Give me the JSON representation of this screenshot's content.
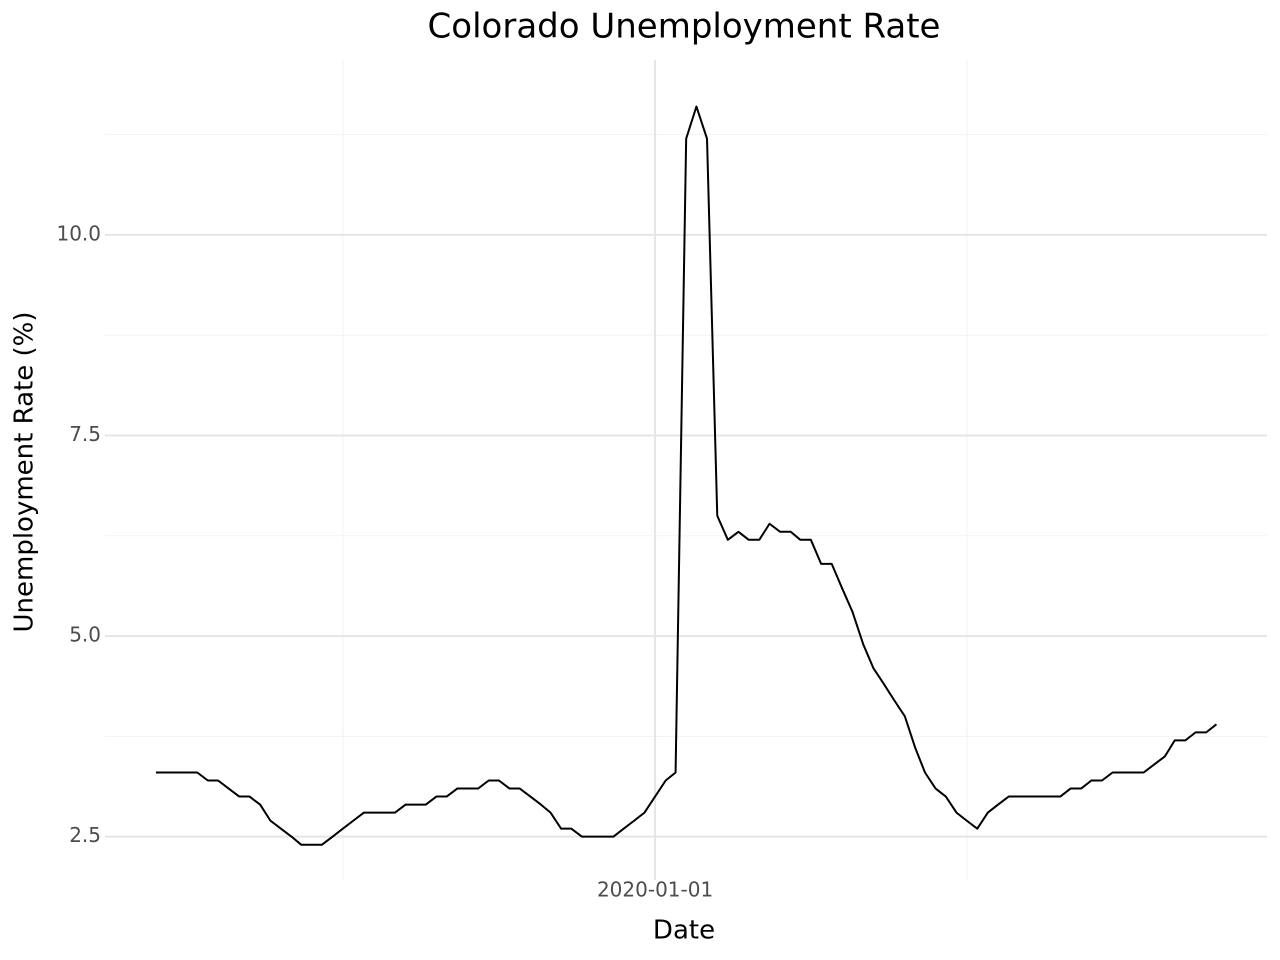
{
  "chart_data": {
    "type": "line",
    "title": "Colorado Unemployment Rate",
    "x_label": "Date",
    "y_label": "Unemployment Rate (%)",
    "color": "#000000",
    "grid": true,
    "x": [
      "2016-01-01",
      "2016-02-01",
      "2016-03-01",
      "2016-04-01",
      "2016-05-01",
      "2016-06-01",
      "2016-07-01",
      "2016-08-01",
      "2016-09-01",
      "2016-10-01",
      "2016-11-01",
      "2016-12-01",
      "2017-01-01",
      "2017-02-01",
      "2017-03-01",
      "2017-04-01",
      "2017-05-01",
      "2017-06-01",
      "2017-07-01",
      "2017-08-01",
      "2017-09-01",
      "2017-10-01",
      "2017-11-01",
      "2017-12-01",
      "2018-01-01",
      "2018-02-01",
      "2018-03-01",
      "2018-04-01",
      "2018-05-01",
      "2018-06-01",
      "2018-07-01",
      "2018-08-01",
      "2018-09-01",
      "2018-10-01",
      "2018-11-01",
      "2018-12-01",
      "2019-01-01",
      "2019-02-01",
      "2019-03-01",
      "2019-04-01",
      "2019-05-01",
      "2019-06-01",
      "2019-07-01",
      "2019-08-01",
      "2019-09-01",
      "2019-10-01",
      "2019-11-01",
      "2019-12-01",
      "2020-01-01",
      "2020-02-01",
      "2020-03-01",
      "2020-04-01",
      "2020-05-01",
      "2020-06-01",
      "2020-07-01",
      "2020-08-01",
      "2020-09-01",
      "2020-10-01",
      "2020-11-01",
      "2020-12-01",
      "2021-01-01",
      "2021-02-01",
      "2021-03-01",
      "2021-04-01",
      "2021-05-01",
      "2021-06-01",
      "2021-07-01",
      "2021-08-01",
      "2021-09-01",
      "2021-10-01",
      "2021-11-01",
      "2021-12-01",
      "2022-01-01",
      "2022-02-01",
      "2022-03-01",
      "2022-04-01",
      "2022-05-01",
      "2022-06-01",
      "2022-07-01",
      "2022-08-01",
      "2022-09-01",
      "2022-10-01",
      "2022-11-01",
      "2022-12-01",
      "2023-01-01",
      "2023-02-01",
      "2023-03-01",
      "2023-04-01",
      "2023-05-01",
      "2023-06-01",
      "2023-07-01",
      "2023-08-01",
      "2023-09-01",
      "2023-10-01",
      "2023-11-01",
      "2023-12-01",
      "2024-01-01",
      "2024-02-01",
      "2024-03-01",
      "2024-04-01",
      "2024-05-01",
      "2024-06-01",
      "2024-07-01"
    ],
    "values": [
      3.3,
      3.3,
      3.3,
      3.3,
      3.3,
      3.2,
      3.2,
      3.1,
      3.0,
      3.0,
      2.9,
      2.7,
      2.6,
      2.5,
      2.4,
      2.4,
      2.4,
      2.5,
      2.6,
      2.7,
      2.8,
      2.8,
      2.8,
      2.8,
      2.9,
      2.9,
      2.9,
      3.0,
      3.0,
      3.1,
      3.1,
      3.1,
      3.2,
      3.2,
      3.1,
      3.1,
      3.0,
      2.9,
      2.8,
      2.6,
      2.6,
      2.5,
      2.5,
      2.5,
      2.5,
      2.6,
      2.7,
      2.8,
      3.0,
      3.2,
      3.3,
      11.2,
      11.6,
      11.2,
      6.5,
      6.2,
      6.3,
      6.2,
      6.2,
      6.4,
      6.3,
      6.3,
      6.2,
      6.2,
      5.9,
      5.9,
      5.6,
      5.3,
      4.9,
      4.6,
      4.4,
      4.2,
      4.0,
      3.6,
      3.3,
      3.1,
      3.0,
      2.8,
      2.7,
      2.6,
      2.8,
      2.9,
      3.0,
      3.0,
      3.0,
      3.0,
      3.0,
      3.0,
      3.1,
      3.1,
      3.2,
      3.2,
      3.3,
      3.3,
      3.3,
      3.3,
      3.4,
      3.5,
      3.7,
      3.7,
      3.8,
      3.8,
      3.9
    ],
    "xlim": [
      "2015-08-05",
      "2024-11-26"
    ],
    "xticks": [
      "2020-01-01"
    ],
    "ylim": [
      1.96,
      12.18
    ],
    "yticks": [
      {
        "value": 2.5,
        "label": "2.5"
      },
      {
        "value": 5,
        "label": "5.0"
      },
      {
        "value": 7.5,
        "label": "7.5"
      },
      {
        "value": 10,
        "label": "10.0"
      }
    ]
  }
}
